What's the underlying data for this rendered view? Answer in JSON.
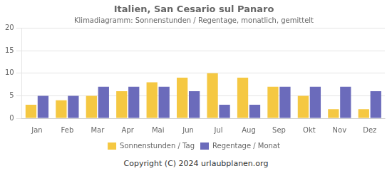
{
  "chart_data": {
    "type": "bar",
    "title": "Italien, San Cesario sul Panaro",
    "subtitle": "Klimadiagramm: Sonnenstunden / Regentage, monatlich, gemittelt",
    "annotations": [
      "Copyright (C) 2024 urlaubplanen.org"
    ],
    "categories": [
      "Jan",
      "Feb",
      "Mar",
      "Apr",
      "Mai",
      "Jun",
      "Jul",
      "Aug",
      "Sep",
      "Okt",
      "Nov",
      "Dez"
    ],
    "series": [
      {
        "name": "Sonnenstunden / Tag",
        "color": "#F5C842",
        "values": [
          3,
          4,
          5,
          6,
          8,
          9,
          10,
          9,
          7,
          5,
          2,
          2
        ]
      },
      {
        "name": "Regentage / Monat",
        "color": "#6B6BBB",
        "values": [
          5,
          5,
          7,
          7,
          7,
          6,
          3,
          3,
          7,
          7,
          7,
          6
        ]
      }
    ],
    "ylim": [
      0,
      20
    ],
    "yticks": [
      0,
      5,
      10,
      15,
      20
    ],
    "grid": true,
    "legend": "bottom"
  }
}
